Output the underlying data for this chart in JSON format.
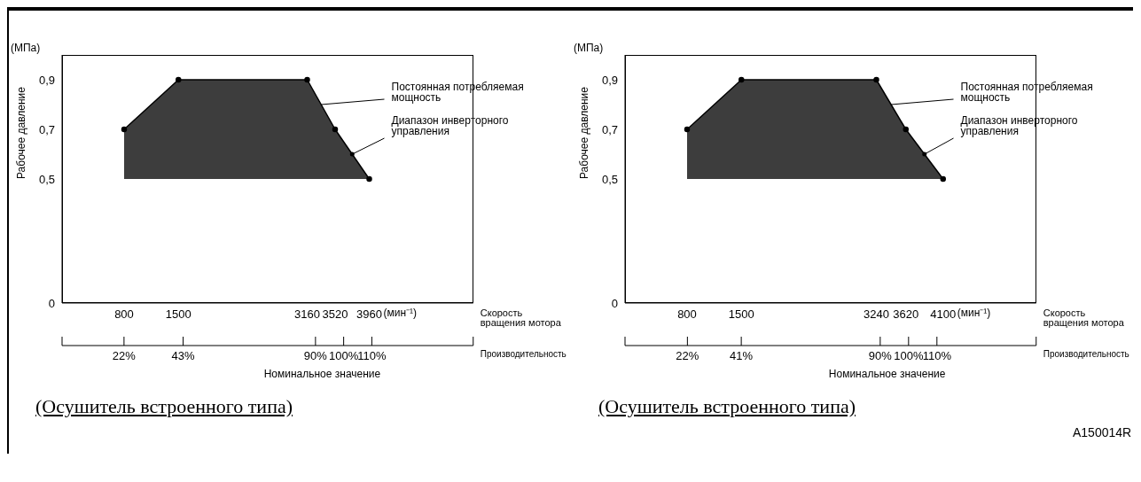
{
  "chart_data": [
    {
      "type": "line",
      "title": "(Осушитель встроенного типа)",
      "ylabel": "Рабочее давление",
      "xlabel": "Скорость вращения мотора",
      "x2label": "Производительность",
      "annotations": [
        "(МПа)",
        "(мин⁻¹)",
        {
          "text": "Постоянная потребляемая мощность",
          "x": 3340,
          "y": 0.8
        },
        {
          "text": "Диапазон инверторного управления",
          "x": 3740,
          "y": 0.6
        },
        "Номинальное значение"
      ],
      "x": [
        800,
        1500,
        3160,
        3520,
        3960
      ],
      "series": [
        {
          "color": "#000000",
          "values": [
            0.7,
            0.9,
            0.9,
            0.7,
            0.5
          ],
          "lower": [
            0.5,
            0.5,
            0.5,
            0.5,
            0.5
          ],
          "upper": [
            0.7,
            0.9,
            0.9,
            0.7,
            0.5
          ]
        }
      ],
      "xlim": [
        0,
        5300
      ],
      "xticks": [
        800,
        1500,
        3160,
        3520,
        3960
      ],
      "x2lim": [
        0,
        146
      ],
      "x2ticks": [
        {
          "value": 22,
          "label": "22%"
        },
        {
          "value": 43,
          "label": "43%"
        },
        {
          "value": 90,
          "label": "90%"
        },
        {
          "value": 100,
          "label": "100%"
        },
        {
          "value": 110,
          "label": "110%"
        }
      ],
      "ylim": [
        0,
        1
      ],
      "yticks": [
        0,
        {
          "value": 0.5,
          "label": "0,5"
        },
        {
          "value": 0.7,
          "label": "0,7"
        },
        {
          "value": 0.9,
          "label": "0,9"
        }
      ],
      "marker": "circle",
      "grid": false,
      "legend": false
    },
    {
      "type": "line",
      "title": "(Осушитель встроенного типа)",
      "ylabel": "Рабочее давление",
      "xlabel": "Скорость вращения мотора",
      "x2label": "Производительность",
      "annotations": [
        "(МПа)",
        "(мин⁻¹)",
        {
          "text": "Постоянная потребляемая мощность",
          "x": 3430,
          "y": 0.8
        },
        {
          "text": "Диапазон инверторного управления",
          "x": 3860,
          "y": 0.6
        },
        "Номинальное значение",
        "A150014R"
      ],
      "x": [
        800,
        1500,
        3240,
        3620,
        4100
      ],
      "series": [
        {
          "color": "#000000",
          "values": [
            0.7,
            0.9,
            0.9,
            0.7,
            0.5
          ],
          "lower": [
            0.5,
            0.5,
            0.5,
            0.5,
            0.5
          ],
          "upper": [
            0.7,
            0.9,
            0.9,
            0.7,
            0.5
          ]
        }
      ],
      "xlim": [
        0,
        5300
      ],
      "xticks": [
        800,
        1500,
        3240,
        3620,
        4100
      ],
      "x2lim": [
        0,
        145
      ],
      "x2ticks": [
        {
          "value": 22,
          "label": "22%"
        },
        {
          "value": 41,
          "label": "41%"
        },
        {
          "value": 90,
          "label": "90%"
        },
        {
          "value": 100,
          "label": "100%"
        },
        {
          "value": 110,
          "label": "110%"
        }
      ],
      "ylim": [
        0,
        1
      ],
      "yticks": [
        0,
        {
          "value": 0.5,
          "label": "0,5"
        },
        {
          "value": 0.7,
          "label": "0,7"
        },
        {
          "value": 0.9,
          "label": "0,9"
        }
      ],
      "marker": "circle",
      "grid": false,
      "legend": false
    }
  ]
}
